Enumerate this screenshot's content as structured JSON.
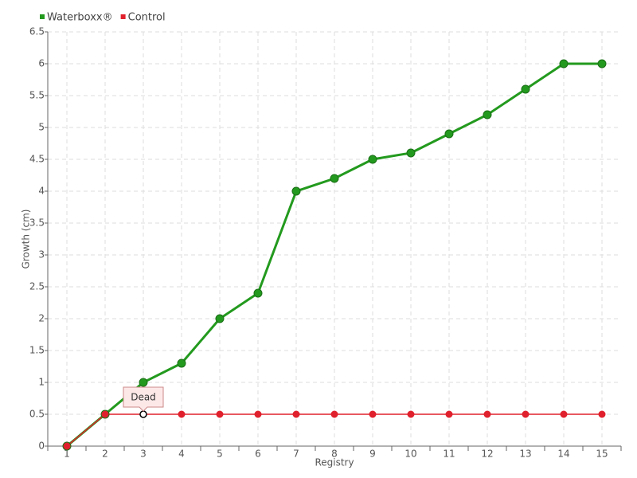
{
  "chart_data": {
    "type": "line",
    "categories": [
      "1",
      "2",
      "3",
      "4",
      "5",
      "6",
      "7",
      "8",
      "9",
      "10",
      "11",
      "12",
      "13",
      "14",
      "15"
    ],
    "series": [
      {
        "name": "Waterboxx®",
        "color": "#239a1e",
        "values": [
          0,
          0.5,
          1,
          1.3,
          2,
          2.4,
          4,
          4.2,
          4.5,
          4.6,
          4.9,
          5.2,
          5.6,
          6,
          6
        ]
      },
      {
        "name": "Control",
        "color": "#e0202c",
        "values": [
          0,
          0.5,
          0.5,
          0.5,
          0.5,
          0.5,
          0.5,
          0.5,
          0.5,
          0.5,
          0.5,
          0.5,
          0.5,
          0.5,
          0.5
        ]
      }
    ],
    "ylim": [
      0,
      6.5
    ],
    "yticks": [
      0,
      0.5,
      1,
      1.5,
      2,
      2.5,
      3,
      3.5,
      4,
      4.5,
      5,
      5.5,
      6,
      6.5
    ],
    "y_label": "Growth (cm)",
    "x_label": "Registry",
    "grid": true,
    "legend": "top-left",
    "annotations": [
      {
        "text": "Dead",
        "series": "Control",
        "category": "3"
      }
    ]
  }
}
